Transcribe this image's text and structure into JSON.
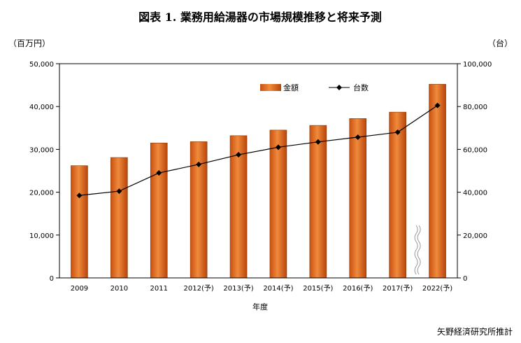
{
  "chart_data": {
    "type": "bar",
    "title": "図表 1.  業務用給湯器の市場規模推移と将来予測",
    "ylabel_left": "（百万円）",
    "ylabel_right": "（台）",
    "xlabel": "年度",
    "source": "矢野経済研究所推計",
    "categories": [
      "2009",
      "2010",
      "2011",
      "2012(予)",
      "2013(予)",
      "2014(予)",
      "2015(予)",
      "2016(予)",
      "2017(予)",
      "2022(予)"
    ],
    "ylim_left": [
      0,
      50000
    ],
    "ylim_right": [
      0,
      100000
    ],
    "yticks_left": [
      "0",
      "10,000",
      "20,000",
      "30,000",
      "40,000",
      "50,000"
    ],
    "yticks_right": [
      "0",
      "20,000",
      "40,000",
      "60,000",
      "80,000",
      "100,000"
    ],
    "axis_break_between": [
      "2017(予)",
      "2022(予)"
    ],
    "series": [
      {
        "name": "金額",
        "type": "bar",
        "axis": "left",
        "color": "#e06a1e",
        "values": [
          26200,
          28100,
          31500,
          31800,
          33200,
          34500,
          35600,
          37200,
          38700,
          45200
        ]
      },
      {
        "name": "台数",
        "type": "line",
        "axis": "right",
        "color": "#000000",
        "marker": "diamond",
        "values": [
          38500,
          40500,
          49000,
          53000,
          57500,
          61000,
          63500,
          65700,
          68000,
          80500
        ]
      }
    ],
    "legend_position": "top-center",
    "grid": false
  }
}
